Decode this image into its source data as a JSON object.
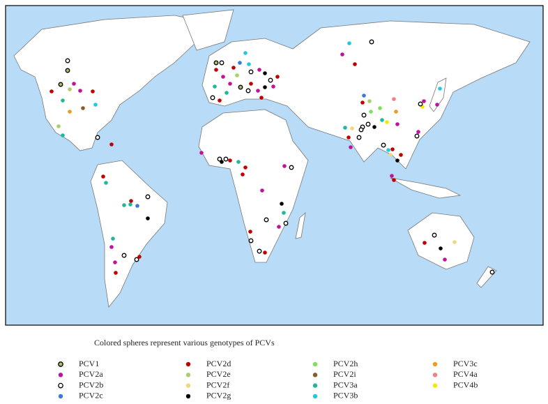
{
  "caption": "Colored spheres represent various genotypes of PCVs",
  "legend": [
    {
      "label": "PCV1",
      "color": "#a8c060",
      "outline": "#000000"
    },
    {
      "label": "PCV2a",
      "color": "#c0129a"
    },
    {
      "label": "PCV2b",
      "color": "#ffffff",
      "outline": "#000000"
    },
    {
      "label": "PCV2c",
      "color": "#3a7bd5"
    },
    {
      "label": "PCV2d",
      "color": "#c00000"
    },
    {
      "label": "PCV2e",
      "color": "#a8cf6a"
    },
    {
      "label": "PCV2f",
      "color": "#f2d77a"
    },
    {
      "label": "PCV2g",
      "color": "#000000"
    },
    {
      "label": "PCV2h",
      "color": "#7ee05a"
    },
    {
      "label": "PCV2i",
      "color": "#8b5a2b"
    },
    {
      "label": "PCV3a",
      "color": "#1fb89a"
    },
    {
      "label": "PCV3b",
      "color": "#20c8e0"
    },
    {
      "label": "PCV3c",
      "color": "#f39a1e"
    },
    {
      "label": "PCV4a",
      "color": "#f08080"
    },
    {
      "label": "PCV4b",
      "color": "#f5e800"
    }
  ]
}
